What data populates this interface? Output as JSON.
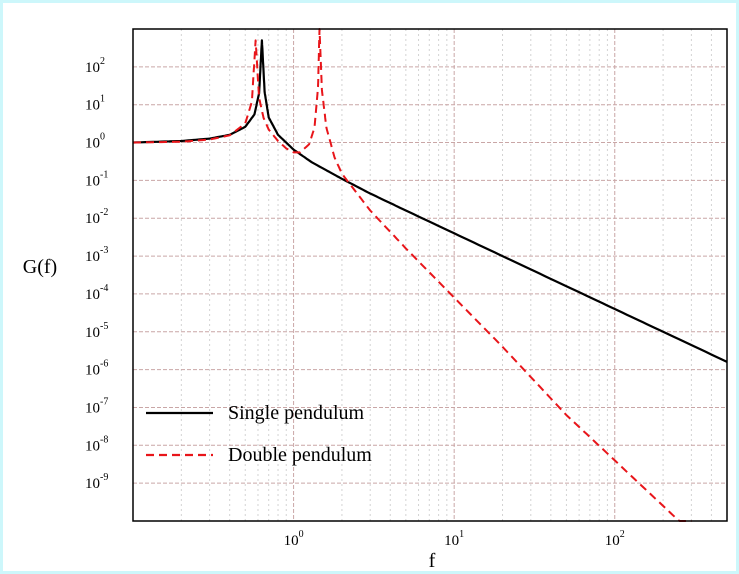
{
  "chart_data": {
    "type": "line",
    "title": "",
    "xlabel": "f",
    "ylabel": "G(f)",
    "xscale": "log",
    "yscale": "log",
    "xlim": [
      0.1,
      500
    ],
    "ylim": [
      1e-10,
      1000
    ],
    "grid": true,
    "legend_position": "bottom-left",
    "x_ticks": [
      {
        "base": "10",
        "exp": "0",
        "value": 1
      },
      {
        "base": "10",
        "exp": "1",
        "value": 10
      },
      {
        "base": "10",
        "exp": "2",
        "value": 100
      }
    ],
    "y_ticks": [
      {
        "base": "10",
        "exp": "2",
        "value": 100
      },
      {
        "base": "10",
        "exp": "1",
        "value": 10
      },
      {
        "base": "10",
        "exp": "0",
        "value": 1
      },
      {
        "base": "10",
        "exp": "-1",
        "value": 0.1
      },
      {
        "base": "10",
        "exp": "-2",
        "value": 0.01
      },
      {
        "base": "10",
        "exp": "-3",
        "value": 0.001
      },
      {
        "base": "10",
        "exp": "-4",
        "value": 0.0001
      },
      {
        "base": "10",
        "exp": "-5",
        "value": 1e-05
      },
      {
        "base": "10",
        "exp": "-6",
        "value": 1e-06
      },
      {
        "base": "10",
        "exp": "-7",
        "value": 1e-07
      },
      {
        "base": "10",
        "exp": "-8",
        "value": 1e-08
      },
      {
        "base": "10",
        "exp": "-9",
        "value": 1e-09
      }
    ],
    "series": [
      {
        "name": "Single pendulum",
        "color": "#000000",
        "style": "solid",
        "points": [
          [
            0.1,
            1.0
          ],
          [
            0.2,
            1.1
          ],
          [
            0.3,
            1.27
          ],
          [
            0.4,
            1.6
          ],
          [
            0.5,
            2.6
          ],
          [
            0.57,
            5.5
          ],
          [
            0.61,
            20
          ],
          [
            0.635,
            500
          ],
          [
            0.66,
            22
          ],
          [
            0.7,
            4.6
          ],
          [
            0.8,
            1.6
          ],
          [
            1.0,
            0.65
          ],
          [
            1.3,
            0.3
          ],
          [
            2.0,
            0.11
          ],
          [
            3.0,
            0.045
          ],
          [
            5.0,
            0.016
          ],
          [
            10.0,
            0.004
          ],
          [
            20.0,
            0.001
          ],
          [
            50.0,
            0.00016
          ],
          [
            100.0,
            4e-05
          ],
          [
            200.0,
            1e-05
          ],
          [
            500.0,
            1.6e-06
          ]
        ]
      },
      {
        "name": "Double pendulum",
        "color": "#e8151a",
        "style": "dashed",
        "points": [
          [
            0.1,
            1.0
          ],
          [
            0.2,
            1.05
          ],
          [
            0.3,
            1.2
          ],
          [
            0.4,
            1.55
          ],
          [
            0.5,
            3.2
          ],
          [
            0.55,
            12
          ],
          [
            0.58,
            500
          ],
          [
            0.61,
            15
          ],
          [
            0.65,
            4.5
          ],
          [
            0.7,
            2.2
          ],
          [
            0.8,
            1.1
          ],
          [
            0.9,
            0.7
          ],
          [
            1.0,
            0.55
          ],
          [
            1.1,
            0.55
          ],
          [
            1.25,
            0.9
          ],
          [
            1.35,
            2.5
          ],
          [
            1.42,
            30
          ],
          [
            1.45,
            1000
          ],
          [
            1.5,
            25
          ],
          [
            1.6,
            2.5
          ],
          [
            1.8,
            0.4
          ],
          [
            2.0,
            0.15
          ],
          [
            3.0,
            0.016
          ],
          [
            5.0,
            0.0016
          ],
          [
            10.0,
            8e-05
          ],
          [
            20.0,
            4e-06
          ],
          [
            50.0,
            6.3e-08
          ],
          [
            100.0,
            4e-09
          ],
          [
            200.0,
            2.5e-10
          ],
          [
            300.0,
            5e-11
          ]
        ]
      }
    ]
  }
}
